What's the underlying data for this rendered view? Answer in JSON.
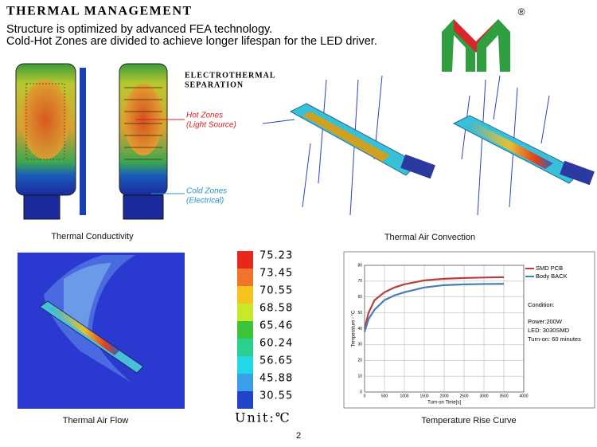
{
  "header": {
    "title": "THERMAL MANAGEMENT",
    "lines": [
      "Structure is optimized  by  advanced  FEA technology.",
      "Cold-Hot Zones are divided to achieve longer lifespan for the LED driver."
    ],
    "trademark": "®"
  },
  "figures": {
    "conductivity": {
      "annotation": [
        "ELECTROTHERMAL",
        "SEPARATION"
      ],
      "hot_zones": [
        "Hot Zones",
        "(Light Source)"
      ],
      "cold_zones": [
        "Cold Zones",
        "(Electrical)"
      ],
      "caption": "Thermal Conductivity"
    },
    "convection": {
      "caption": "Thermal Air Convection"
    },
    "air_flow": {
      "caption": "Thermal Air Flow"
    }
  },
  "color_scale": {
    "values": [
      75.23,
      73.45,
      70.55,
      68.58,
      65.46,
      60.24,
      56.65,
      45.88,
      30.55
    ],
    "colors": [
      "#e8261c",
      "#f0742a",
      "#f5c21e",
      "#c9e82a",
      "#3cc43a",
      "#2ad08e",
      "#22d8e8",
      "#3a9fe8",
      "#2244c8"
    ],
    "unit": "Unit:℃"
  },
  "chart_data": {
    "type": "line",
    "caption": "Temperature Rise Curve",
    "x": [
      0,
      100,
      250,
      500,
      750,
      1000,
      1500,
      2000,
      2500,
      3000,
      3500
    ],
    "series": [
      {
        "name": "SMD PCB",
        "color": "#b5403d",
        "values": [
          40,
          50,
          58,
          63,
          66,
          68,
          70.5,
          71.5,
          72,
          72.3,
          72.5
        ]
      },
      {
        "name": "Body BACK",
        "color": "#4a7db5",
        "values": [
          38,
          46,
          52,
          58,
          61,
          63,
          66,
          67.5,
          68,
          68.2,
          68.3
        ]
      }
    ],
    "xlim": [
      0,
      4000
    ],
    "ylim": [
      0,
      80
    ],
    "xticks": [
      0,
      500,
      1000,
      1500,
      2000,
      2500,
      3000,
      3500,
      4000
    ],
    "yticks": [
      0,
      10,
      20,
      30,
      40,
      50,
      60,
      70,
      80
    ],
    "xlabel": "Turn-on Time[s]",
    "ylabel": "Temperature - °C",
    "grid": true,
    "conditions": [
      "Condition:",
      "Power:200W",
      "LED: 3030SMD",
      "Turn-on: 60 minutes"
    ]
  },
  "page_number": "2"
}
